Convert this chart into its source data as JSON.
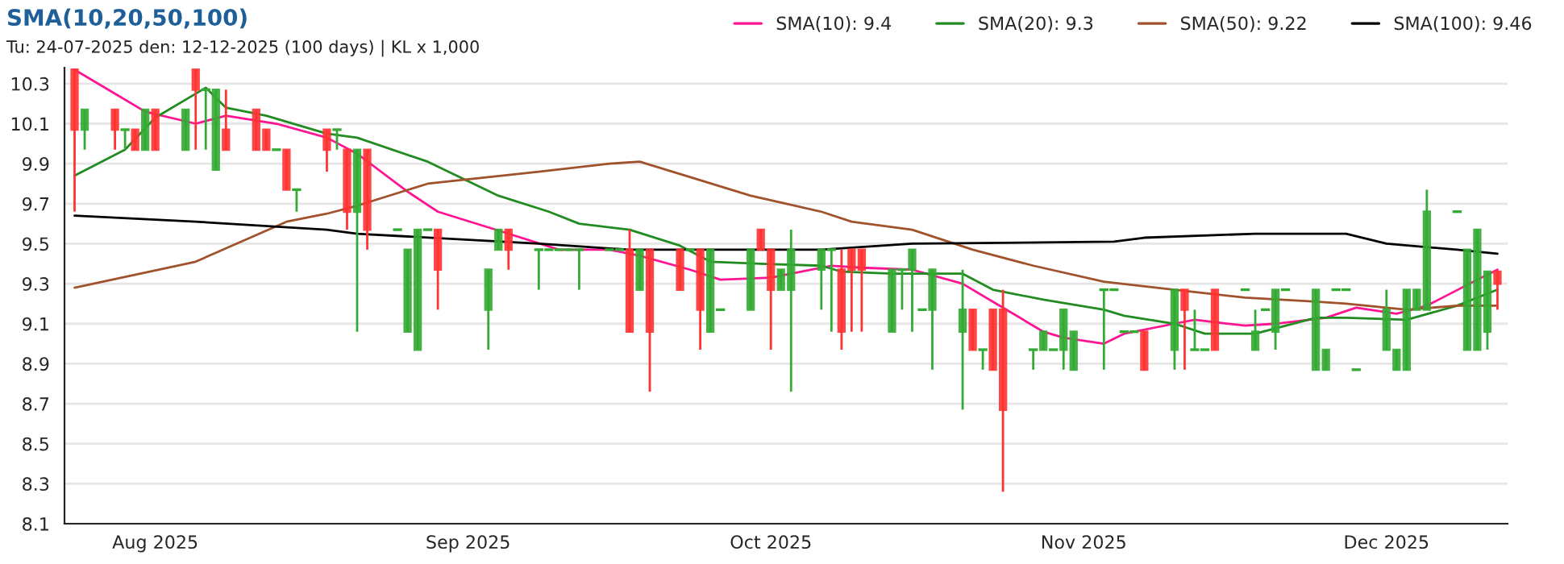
{
  "chart_data": {
    "type": "candlestick",
    "title": "SMA(10,20,50,100)",
    "subtitle": "Tu: 24-07-2025 den: 12-12-2025 (100 days) | KL x 1,000",
    "x": [
      "2025-07-24",
      "2025-07-25",
      "2025-07-28",
      "2025-07-29",
      "2025-07-30",
      "2025-07-31",
      "2025-08-01",
      "2025-08-04",
      "2025-08-05",
      "2025-08-06",
      "2025-08-07",
      "2025-08-08",
      "2025-08-11",
      "2025-08-12",
      "2025-08-13",
      "2025-08-14",
      "2025-08-15",
      "2025-08-18",
      "2025-08-19",
      "2025-08-20",
      "2025-08-21",
      "2025-08-22",
      "2025-08-25",
      "2025-08-26",
      "2025-08-27",
      "2025-08-28",
      "2025-08-29",
      "2025-09-03",
      "2025-09-04",
      "2025-09-05",
      "2025-09-08",
      "2025-09-09",
      "2025-09-10",
      "2025-09-11",
      "2025-09-12",
      "2025-09-15",
      "2025-09-16",
      "2025-09-17",
      "2025-09-18",
      "2025-09-19",
      "2025-09-22",
      "2025-09-23",
      "2025-09-24",
      "2025-09-25",
      "2025-09-26",
      "2025-09-29",
      "2025-09-30",
      "2025-10-01",
      "2025-10-02",
      "2025-10-03",
      "2025-10-06",
      "2025-10-07",
      "2025-10-08",
      "2025-10-09",
      "2025-10-10",
      "2025-10-13",
      "2025-10-14",
      "2025-10-15",
      "2025-10-16",
      "2025-10-17",
      "2025-10-20",
      "2025-10-21",
      "2025-10-22",
      "2025-10-23",
      "2025-10-24",
      "2025-10-27",
      "2025-10-28",
      "2025-10-29",
      "2025-10-30",
      "2025-10-31",
      "2025-11-03",
      "2025-11-04",
      "2025-11-05",
      "2025-11-06",
      "2025-11-07",
      "2025-11-10",
      "2025-11-11",
      "2025-11-12",
      "2025-11-13",
      "2025-11-14",
      "2025-11-17",
      "2025-11-18",
      "2025-11-19",
      "2025-11-20",
      "2025-11-21",
      "2025-11-24",
      "2025-11-25",
      "2025-11-26",
      "2025-11-27",
      "2025-11-28",
      "2025-12-01",
      "2025-12-02",
      "2025-12-03",
      "2025-12-04",
      "2025-12-05",
      "2025-12-08",
      "2025-12-09",
      "2025-12-10",
      "2025-12-11",
      "2025-12-12"
    ],
    "xlim": [
      "2025-07-23",
      "2025-12-13"
    ],
    "xticks": [
      {
        "value": "2025-08-01",
        "label": "Aug 2025"
      },
      {
        "value": "2025-09-01",
        "label": "Sep 2025"
      },
      {
        "value": "2025-10-01",
        "label": "Oct 2025"
      },
      {
        "value": "2025-11-01",
        "label": "Nov 2025"
      },
      {
        "value": "2025-12-01",
        "label": "Dec 2025"
      }
    ],
    "ylim": [
      8.1,
      10.38
    ],
    "yticks": [
      {
        "value": 8.1,
        "label": "8.1"
      },
      {
        "value": 8.3,
        "label": "8.3"
      },
      {
        "value": 8.5,
        "label": "8.5"
      },
      {
        "value": 8.7,
        "label": "8.7"
      },
      {
        "value": 8.9,
        "label": "8.9"
      },
      {
        "value": 9.1,
        "label": "9.1"
      },
      {
        "value": 9.3,
        "label": "9.3"
      },
      {
        "value": 9.5,
        "label": "9.5"
      },
      {
        "value": 9.7,
        "label": "9.7"
      },
      {
        "value": 9.9,
        "label": "9.9"
      },
      {
        "value": 10.1,
        "label": "10.1"
      },
      {
        "value": 10.3,
        "label": "10.3"
      }
    ],
    "grid": "y",
    "legend": "top right",
    "ohlc": [
      [
        10.37,
        10.37,
        9.66,
        10.07
      ],
      [
        10.07,
        10.17,
        9.97,
        10.17
      ],
      [
        10.17,
        10.17,
        9.97,
        10.07
      ],
      [
        10.07,
        10.07,
        9.97,
        10.07
      ],
      [
        10.07,
        10.07,
        9.97,
        9.97
      ],
      [
        9.97,
        10.17,
        9.97,
        10.17
      ],
      [
        10.17,
        10.17,
        9.97,
        9.97
      ],
      [
        9.97,
        10.17,
        9.97,
        10.17
      ],
      [
        10.37,
        10.37,
        9.97,
        10.27
      ],
      [
        10.27,
        10.27,
        9.97,
        10.27
      ],
      [
        9.87,
        10.27,
        9.87,
        10.27
      ],
      [
        10.07,
        10.27,
        9.97,
        9.97
      ],
      [
        10.17,
        10.17,
        9.97,
        9.97
      ],
      [
        10.07,
        10.07,
        9.97,
        9.97
      ],
      [
        9.97,
        9.97,
        9.97,
        9.97
      ],
      [
        9.97,
        9.97,
        9.77,
        9.77
      ],
      [
        9.77,
        9.77,
        9.66,
        9.77
      ],
      [
        10.07,
        10.07,
        9.86,
        9.97
      ],
      [
        10.07,
        10.07,
        9.97,
        10.07
      ],
      [
        9.97,
        9.97,
        9.57,
        9.66
      ],
      [
        9.66,
        9.97,
        9.06,
        9.97
      ],
      [
        9.97,
        9.97,
        9.47,
        9.57
      ],
      [
        9.57,
        9.57,
        9.57,
        9.57
      ],
      [
        9.06,
        9.47,
        9.06,
        9.47
      ],
      [
        8.97,
        9.57,
        8.97,
        9.57
      ],
      [
        9.57,
        9.57,
        9.57,
        9.57
      ],
      [
        9.57,
        9.57,
        9.17,
        9.37
      ],
      [
        9.17,
        9.37,
        8.97,
        9.37
      ],
      [
        9.47,
        9.57,
        9.47,
        9.57
      ],
      [
        9.57,
        9.57,
        9.37,
        9.47
      ],
      [
        9.47,
        9.47,
        9.27,
        9.47
      ],
      [
        9.47,
        9.47,
        9.47,
        9.47
      ],
      [
        9.47,
        9.47,
        9.47,
        9.47
      ],
      [
        9.47,
        9.47,
        9.47,
        9.47
      ],
      [
        9.47,
        9.47,
        9.27,
        9.47
      ],
      [
        9.47,
        9.47,
        9.47,
        9.47
      ],
      [
        9.47,
        9.47,
        9.47,
        9.47
      ],
      [
        9.47,
        9.57,
        9.06,
        9.06
      ],
      [
        9.27,
        9.47,
        9.27,
        9.47
      ],
      [
        9.47,
        9.47,
        8.76,
        9.06
      ],
      [
        9.47,
        9.47,
        9.27,
        9.27
      ],
      [
        9.47,
        9.47,
        9.47,
        9.47
      ],
      [
        9.47,
        9.47,
        8.97,
        9.17
      ],
      [
        9.06,
        9.47,
        9.06,
        9.47
      ],
      [
        9.17,
        9.17,
        9.17,
        9.17
      ],
      [
        9.17,
        9.47,
        9.17,
        9.47
      ],
      [
        9.57,
        9.57,
        9.47,
        9.47
      ],
      [
        9.47,
        9.47,
        8.97,
        9.27
      ],
      [
        9.27,
        9.37,
        9.27,
        9.37
      ],
      [
        9.27,
        9.57,
        8.76,
        9.47
      ],
      [
        9.37,
        9.47,
        9.17,
        9.47
      ],
      [
        9.47,
        9.47,
        9.06,
        9.47
      ],
      [
        9.37,
        9.47,
        8.97,
        9.06
      ],
      [
        9.47,
        9.47,
        9.06,
        9.37
      ],
      [
        9.47,
        9.47,
        9.06,
        9.37
      ],
      [
        9.06,
        9.37,
        9.06,
        9.37
      ],
      [
        9.37,
        9.37,
        9.17,
        9.37
      ],
      [
        9.37,
        9.47,
        9.06,
        9.47
      ],
      [
        9.17,
        9.17,
        9.17,
        9.17
      ],
      [
        9.17,
        9.37,
        8.87,
        9.37
      ],
      [
        9.06,
        9.37,
        8.67,
        9.17
      ],
      [
        9.17,
        9.17,
        8.97,
        8.97
      ],
      [
        8.97,
        8.97,
        8.87,
        8.97
      ],
      [
        9.17,
        9.17,
        8.87,
        8.87
      ],
      [
        9.17,
        9.27,
        8.26,
        8.67
      ],
      [
        8.97,
        8.97,
        8.87,
        8.97
      ],
      [
        8.97,
        9.06,
        8.97,
        9.06
      ],
      [
        8.97,
        8.97,
        8.97,
        8.97
      ],
      [
        8.97,
        9.17,
        8.87,
        9.17
      ],
      [
        8.87,
        9.06,
        8.87,
        9.06
      ],
      [
        9.27,
        9.27,
        8.87,
        9.27
      ],
      [
        9.27,
        9.27,
        9.27,
        9.27
      ],
      [
        9.06,
        9.06,
        9.06,
        9.06
      ],
      [
        9.06,
        9.06,
        9.06,
        9.06
      ],
      [
        9.06,
        9.06,
        8.87,
        8.87
      ],
      [
        8.97,
        9.27,
        8.87,
        9.27
      ],
      [
        9.27,
        9.27,
        8.87,
        9.17
      ],
      [
        8.97,
        9.17,
        8.97,
        8.97
      ],
      [
        8.97,
        8.97,
        8.97,
        8.97
      ],
      [
        9.27,
        9.27,
        8.97,
        8.97
      ],
      [
        9.27,
        9.27,
        9.27,
        9.27
      ],
      [
        8.97,
        9.17,
        8.97,
        9.06
      ],
      [
        9.17,
        9.17,
        9.17,
        9.17
      ],
      [
        9.06,
        9.27,
        8.97,
        9.27
      ],
      [
        9.27,
        9.27,
        9.27,
        9.27
      ],
      [
        8.87,
        9.27,
        8.87,
        9.27
      ],
      [
        8.87,
        8.97,
        8.87,
        8.97
      ],
      [
        9.27,
        9.27,
        9.27,
        9.27
      ],
      [
        9.27,
        9.27,
        9.27,
        9.27
      ],
      [
        8.87,
        8.87,
        8.87,
        8.87
      ],
      [
        8.97,
        9.27,
        8.97,
        9.17
      ],
      [
        8.87,
        8.97,
        8.87,
        8.97
      ],
      [
        8.87,
        9.27,
        8.87,
        9.27
      ],
      [
        9.17,
        9.27,
        9.17,
        9.27
      ],
      [
        9.17,
        9.77,
        9.17,
        9.66
      ],
      [
        9.66,
        9.66,
        9.66,
        9.66
      ],
      [
        8.97,
        9.47,
        8.97,
        9.47
      ],
      [
        8.97,
        9.57,
        8.97,
        9.57
      ],
      [
        9.06,
        9.36,
        8.97,
        9.36
      ],
      [
        9.36,
        9.36,
        9.17,
        9.3
      ]
    ],
    "colors": [
      "#ff3333",
      "#33aa33",
      "#ff3333",
      "#33aa33",
      "#ff3333",
      "#33aa33",
      "#ff3333",
      "#33aa33",
      "#ff3333",
      "#33aa33",
      "#33aa33",
      "#ff3333",
      "#ff3333",
      "#ff3333",
      "#33aa33",
      "#ff3333",
      "#33aa33",
      "#ff3333",
      "#33aa33",
      "#ff3333",
      "#33aa33",
      "#ff3333",
      "#33aa33",
      "#33aa33",
      "#33aa33",
      "#33aa33",
      "#ff3333",
      "#33aa33",
      "#33aa33",
      "#ff3333",
      "#33aa33",
      "#33aa33",
      "#33aa33",
      "#33aa33",
      "#33aa33",
      "#33aa33",
      "#33aa33",
      "#ff3333",
      "#33aa33",
      "#ff3333",
      "#ff3333",
      "#33aa33",
      "#ff3333",
      "#33aa33",
      "#33aa33",
      "#33aa33",
      "#ff3333",
      "#ff3333",
      "#33aa33",
      "#33aa33",
      "#33aa33",
      "#33aa33",
      "#ff3333",
      "#ff3333",
      "#ff3333",
      "#33aa33",
      "#33aa33",
      "#33aa33",
      "#33aa33",
      "#33aa33",
      "#33aa33",
      "#ff3333",
      "#33aa33",
      "#ff3333",
      "#ff3333",
      "#33aa33",
      "#33aa33",
      "#33aa33",
      "#33aa33",
      "#33aa33",
      "#33aa33",
      "#33aa33",
      "#33aa33",
      "#33aa33",
      "#ff3333",
      "#33aa33",
      "#ff3333",
      "#33aa33",
      "#33aa33",
      "#ff3333",
      "#33aa33",
      "#33aa33",
      "#33aa33",
      "#33aa33",
      "#33aa33",
      "#33aa33",
      "#33aa33",
      "#33aa33",
      "#33aa33",
      "#33aa33",
      "#33aa33",
      "#33aa33",
      "#33aa33",
      "#33aa33",
      "#33aa33",
      "#33aa33",
      "#33aa33",
      "#33aa33",
      "#33aa33",
      "#ff3333"
    ],
    "series": [
      {
        "name": "SMA(10): 9.4",
        "type": "line",
        "color": "#ff1493",
        "x": [
          "2025-07-24",
          "2025-07-28",
          "2025-07-31",
          "2025-08-05",
          "2025-08-08",
          "2025-08-13",
          "2025-08-18",
          "2025-08-21",
          "2025-08-26",
          "2025-08-29",
          "2025-09-05",
          "2025-09-10",
          "2025-09-15",
          "2025-09-18",
          "2025-09-23",
          "2025-09-26",
          "2025-10-01",
          "2025-10-07",
          "2025-10-10",
          "2025-10-15",
          "2025-10-20",
          "2025-10-23",
          "2025-10-28",
          "2025-10-30",
          "2025-11-03",
          "2025-11-05",
          "2025-11-10",
          "2025-11-12",
          "2025-11-17",
          "2025-11-20",
          "2025-11-25",
          "2025-11-28",
          "2025-12-02",
          "2025-12-05",
          "2025-12-10",
          "2025-12-12"
        ],
        "values": [
          10.37,
          10.25,
          10.16,
          10.1,
          10.14,
          10.1,
          10.03,
          9.95,
          9.76,
          9.66,
          9.55,
          9.47,
          9.47,
          9.44,
          9.37,
          9.32,
          9.33,
          9.39,
          9.38,
          9.37,
          9.3,
          9.21,
          9.06,
          9.03,
          9.0,
          9.05,
          9.1,
          9.12,
          9.09,
          9.1,
          9.13,
          9.18,
          9.15,
          9.19,
          9.32,
          9.37
        ]
      },
      {
        "name": "SMA(20): 9.3",
        "type": "line",
        "color": "#228b22",
        "x": [
          "2025-07-24",
          "2025-07-29",
          "2025-08-01",
          "2025-08-06",
          "2025-08-08",
          "2025-08-12",
          "2025-08-18",
          "2025-08-21",
          "2025-08-28",
          "2025-09-04",
          "2025-09-09",
          "2025-09-12",
          "2025-09-17",
          "2025-09-22",
          "2025-09-25",
          "2025-09-30",
          "2025-10-06",
          "2025-10-08",
          "2025-10-13",
          "2025-10-20",
          "2025-10-23",
          "2025-10-28",
          "2025-11-03",
          "2025-11-05",
          "2025-11-10",
          "2025-11-13",
          "2025-11-18",
          "2025-11-24",
          "2025-11-27",
          "2025-12-03",
          "2025-12-08",
          "2025-12-12"
        ],
        "values": [
          9.84,
          9.97,
          10.13,
          10.28,
          10.18,
          10.14,
          10.05,
          10.03,
          9.91,
          9.74,
          9.66,
          9.6,
          9.57,
          9.49,
          9.41,
          9.4,
          9.39,
          9.36,
          9.35,
          9.35,
          9.27,
          9.22,
          9.17,
          9.14,
          9.1,
          9.05,
          9.05,
          9.13,
          9.13,
          9.12,
          9.19,
          9.27
        ]
      },
      {
        "name": "SMA(50): 9.22",
        "type": "line",
        "color": "#a0522d",
        "x": [
          "2025-07-24",
          "2025-08-05",
          "2025-08-14",
          "2025-08-18",
          "2025-08-21",
          "2025-08-28",
          "2025-09-08",
          "2025-09-15",
          "2025-09-18",
          "2025-09-29",
          "2025-10-06",
          "2025-10-09",
          "2025-10-15",
          "2025-10-21",
          "2025-10-27",
          "2025-11-03",
          "2025-11-10",
          "2025-11-17",
          "2025-11-24",
          "2025-11-27",
          "2025-12-03",
          "2025-12-08",
          "2025-12-12"
        ],
        "values": [
          9.28,
          9.41,
          9.61,
          9.65,
          9.69,
          9.8,
          9.86,
          9.9,
          9.91,
          9.74,
          9.66,
          9.61,
          9.57,
          9.47,
          9.39,
          9.31,
          9.27,
          9.23,
          9.21,
          9.2,
          9.17,
          9.19,
          9.19
        ]
      },
      {
        "name": "SMA(100): 9.46",
        "type": "line",
        "color": "#000000",
        "x": [
          "2025-07-24",
          "2025-08-05",
          "2025-08-18",
          "2025-08-21",
          "2025-09-08",
          "2025-09-17",
          "2025-10-06",
          "2025-10-15",
          "2025-11-04",
          "2025-11-07",
          "2025-11-18",
          "2025-11-27",
          "2025-12-01",
          "2025-12-08",
          "2025-12-12"
        ],
        "values": [
          9.64,
          9.61,
          9.57,
          9.55,
          9.5,
          9.47,
          9.47,
          9.5,
          9.51,
          9.53,
          9.55,
          9.55,
          9.5,
          9.47,
          9.45
        ]
      }
    ]
  }
}
